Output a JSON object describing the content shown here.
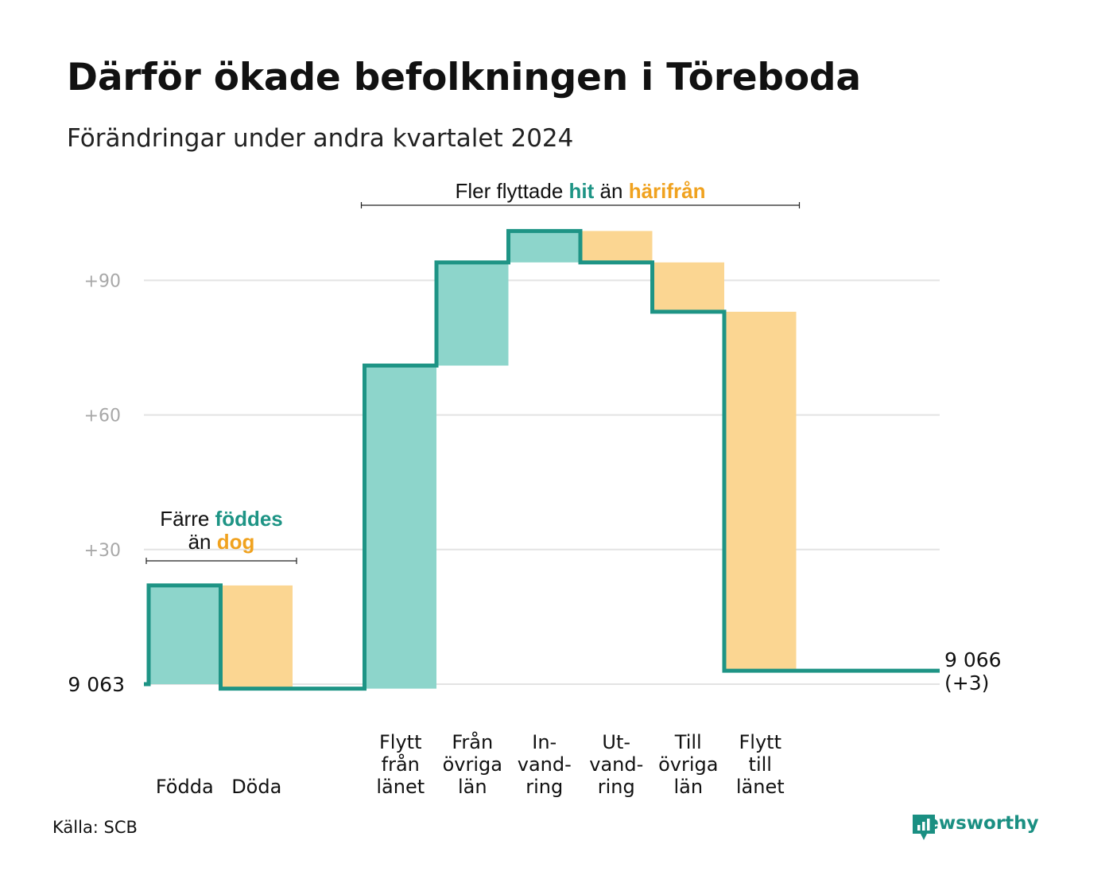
{
  "chart_data": {
    "type": "waterfall",
    "title": "Därför ökade befolkningen i Töreboda",
    "subtitle": "Förändringar under andra kvartalet 2024",
    "start": {
      "label": "9 063",
      "value": 0
    },
    "end": {
      "label": "9 066",
      "sublabel": "(+3)",
      "value": 3
    },
    "y_ticks": [
      {
        "value": 30,
        "label": "+30"
      },
      {
        "value": 60,
        "label": "+60"
      },
      {
        "value": 90,
        "label": "+90"
      }
    ],
    "ylim": [
      -8,
      103
    ],
    "grid": true,
    "steps": [
      {
        "id": "fodda",
        "label_lines": [
          "Födda"
        ],
        "change": 22,
        "kind": "in"
      },
      {
        "id": "doda",
        "label_lines": [
          "Döda"
        ],
        "change": -23,
        "kind": "out"
      },
      {
        "id": "gap",
        "label_lines": [],
        "change": 0,
        "kind": "none"
      },
      {
        "id": "flytt-fran-lanet",
        "label_lines": [
          "Flytt",
          "från",
          "länet"
        ],
        "change": 72,
        "kind": "in"
      },
      {
        "id": "fran-ovriga-lan",
        "label_lines": [
          "Från",
          "övriga",
          "län"
        ],
        "change": 23,
        "kind": "in"
      },
      {
        "id": "invandring",
        "label_lines": [
          "In-",
          "vand-",
          "ring"
        ],
        "change": 7,
        "kind": "in"
      },
      {
        "id": "utvandring",
        "label_lines": [
          "Ut-",
          "vand-",
          "ring"
        ],
        "change": -7,
        "kind": "out"
      },
      {
        "id": "till-ovriga-lan",
        "label_lines": [
          "Till",
          "övriga",
          "län"
        ],
        "change": -11,
        "kind": "out"
      },
      {
        "id": "flytt-till-lanet",
        "label_lines": [
          "Flytt",
          "till",
          "länet"
        ],
        "change": -80,
        "kind": "out"
      }
    ],
    "annotations": [
      {
        "id": "births",
        "line1": "Färre",
        "accent1": "föddes",
        "line2": "än",
        "accent2": "dog",
        "span": [
          "fodda",
          "doda"
        ]
      },
      {
        "id": "moves",
        "line1": "Fler flyttade",
        "accent1": "hit",
        "line2": "än",
        "accent2": "härifrån",
        "span": [
          "flytt-fran-lanet",
          "flytt-till-lanet"
        ]
      }
    ],
    "colors": {
      "in": "#8dd5cb",
      "out": "#fbd692",
      "line": "#1e9485",
      "grid": "#e3e3e3",
      "axis_text": "#a8a8a8",
      "in_text": "#1e9485",
      "out_text": "#f0a21f"
    }
  },
  "footer": {
    "source": "Källa: SCB",
    "brand": "Newsworthy",
    "brand_icon": "newsworthy-logo-icon"
  }
}
